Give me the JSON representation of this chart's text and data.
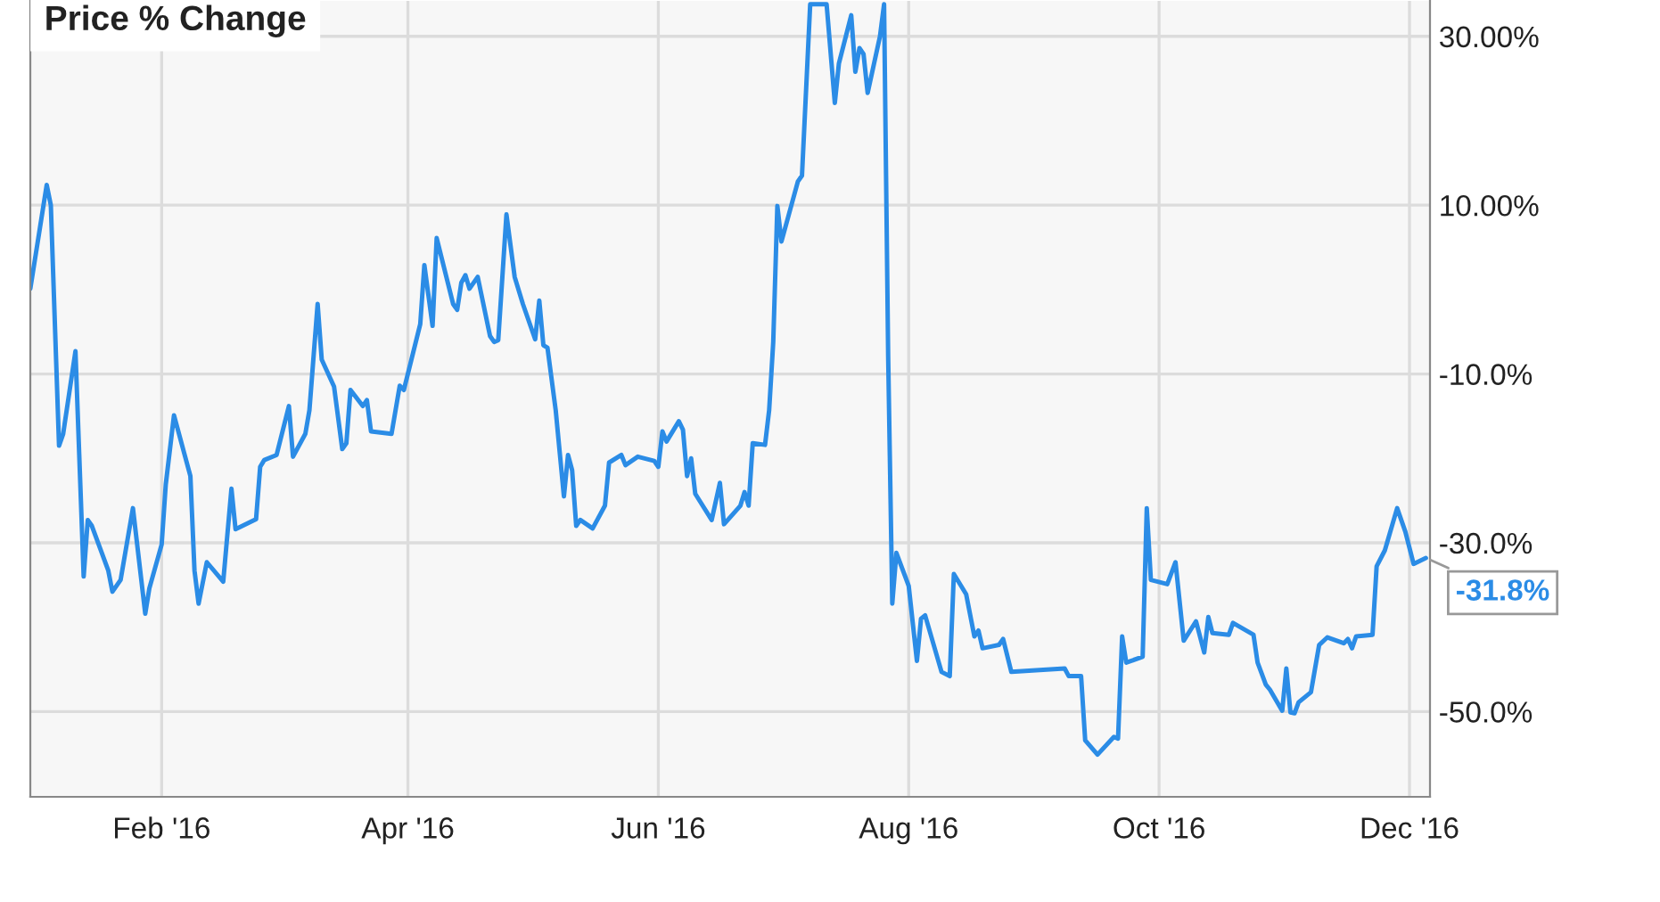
{
  "chart_data": {
    "type": "line",
    "title": "Price % Change",
    "x": [
      "2015-12-31",
      "2016-01-04",
      "2016-01-05",
      "2016-01-07",
      "2016-01-08",
      "2016-01-11",
      "2016-01-13",
      "2016-01-14",
      "2016-01-15",
      "2016-01-19",
      "2016-01-20",
      "2016-01-22",
      "2016-01-25",
      "2016-01-28",
      "2016-01-29",
      "2016-02-01",
      "2016-02-02",
      "2016-02-04",
      "2016-02-08",
      "2016-02-09",
      "2016-02-10",
      "2016-02-12",
      "2016-02-16",
      "2016-02-18",
      "2016-02-19",
      "2016-02-24",
      "2016-02-25",
      "2016-02-26",
      "2016-02-29",
      "2016-03-03",
      "2016-03-04",
      "2016-03-07",
      "2016-03-08",
      "2016-03-10",
      "2016-03-11",
      "2016-03-14",
      "2016-03-16",
      "2016-03-17",
      "2016-03-18",
      "2016-03-21",
      "2016-03-22",
      "2016-03-23",
      "2016-03-28",
      "2016-03-30",
      "2016-03-31",
      "2016-04-04",
      "2016-04-05",
      "2016-04-07",
      "2016-04-08",
      "2016-04-12",
      "2016-04-13",
      "2016-04-14",
      "2016-04-15",
      "2016-04-16",
      "2016-04-18",
      "2016-04-21",
      "2016-04-22",
      "2016-04-23",
      "2016-04-25",
      "2016-04-27",
      "2016-04-29",
      "2016-05-02",
      "2016-05-03",
      "2016-05-04",
      "2016-05-05",
      "2016-05-07",
      "2016-05-09",
      "2016-05-10",
      "2016-05-11",
      "2016-05-12",
      "2016-05-13",
      "2016-05-16",
      "2016-05-19",
      "2016-05-20",
      "2016-05-23",
      "2016-05-24",
      "2016-05-27",
      "2016-05-31",
      "2016-06-01",
      "2016-06-02",
      "2016-06-03",
      "2016-06-06",
      "2016-06-07",
      "2016-06-08",
      "2016-06-09",
      "2016-06-10",
      "2016-06-14",
      "2016-06-16",
      "2016-06-17",
      "2016-06-21",
      "2016-06-22",
      "2016-06-23",
      "2016-06-24",
      "2016-06-27",
      "2016-06-28",
      "2016-06-29",
      "2016-06-30",
      "2016-07-01",
      "2016-07-05",
      "2016-07-06",
      "2016-07-08",
      "2016-07-12",
      "2016-07-14",
      "2016-07-15",
      "2016-07-18",
      "2016-07-19",
      "2016-07-20",
      "2016-07-21",
      "2016-07-22",
      "2016-07-25",
      "2016-07-26",
      "2016-07-27",
      "2016-07-28",
      "2016-07-29",
      "2016-08-01",
      "2016-08-03",
      "2016-08-04",
      "2016-08-05",
      "2016-08-09",
      "2016-08-11",
      "2016-08-12",
      "2016-08-15",
      "2016-08-17",
      "2016-08-18",
      "2016-08-19",
      "2016-08-23",
      "2016-08-24",
      "2016-08-26",
      "2016-09-01",
      "2016-09-08",
      "2016-09-09",
      "2016-09-12",
      "2016-09-13",
      "2016-09-16",
      "2016-09-20",
      "2016-09-21",
      "2016-09-22",
      "2016-09-23",
      "2016-09-27",
      "2016-09-28",
      "2016-09-29",
      "2016-10-03",
      "2016-10-05",
      "2016-10-07",
      "2016-10-10",
      "2016-10-12",
      "2016-10-13",
      "2016-10-14",
      "2016-10-18",
      "2016-10-19",
      "2016-10-24",
      "2016-10-25",
      "2016-10-27",
      "2016-10-28",
      "2016-10-31",
      "2016-11-01",
      "2016-11-02",
      "2016-11-03",
      "2016-11-04",
      "2016-11-07",
      "2016-11-09",
      "2016-11-11",
      "2016-11-15",
      "2016-11-16",
      "2016-11-17",
      "2016-11-18",
      "2016-11-22",
      "2016-11-23",
      "2016-11-25",
      "2016-11-28",
      "2016-11-30",
      "2016-12-02",
      "2016-12-05"
    ],
    "series": [
      {
        "color": "#2b8ce6",
        "values": [
          0.1,
          12.4,
          10,
          -18.5,
          -17.1,
          -7.3,
          -34,
          -27.3,
          -28,
          -33.3,
          -35.8,
          -34.4,
          -25.9,
          -38.4,
          -35.4,
          -30.2,
          -23.1,
          -14.9,
          -22.1,
          -33.3,
          -37.2,
          -32.3,
          -34.6,
          -23.6,
          -28.4,
          -27.2,
          -21,
          -20.2,
          -19.6,
          -13.8,
          -19.8,
          -17.1,
          -14.3,
          -1.7,
          -8.3,
          -11.5,
          -18.9,
          -18.2,
          -11.9,
          -13.8,
          -13.1,
          -16.8,
          -17.1,
          -11.4,
          -11.9,
          -4.1,
          2.9,
          -4.3,
          6.1,
          -1.7,
          -2.4,
          0.8,
          1.7,
          0.1,
          1.5,
          -5.5,
          -6.2,
          -6,
          8.9,
          1.5,
          -1.7,
          -5.9,
          -1.3,
          -6.6,
          -6.9,
          -14.3,
          -24.5,
          -19.6,
          -21.4,
          -28,
          -27.3,
          -28.3,
          -25.6,
          -20.5,
          -19.6,
          -20.8,
          -19.8,
          -20.3,
          -21,
          -16.8,
          -18,
          -15.6,
          -16.6,
          -22.1,
          -20,
          -24.2,
          -27.3,
          -22.9,
          -27.8,
          -25.6,
          -24,
          -25.6,
          -18.2,
          -18.4,
          -14.3,
          -6.2,
          9.9,
          5.7,
          12.8,
          13.5,
          33.8,
          33.8,
          22.1,
          26.8,
          32.5,
          25.8,
          28.6,
          27.9,
          23.3,
          30,
          33.8,
          -8,
          -37.2,
          -31.2,
          -35.1,
          -44,
          -39,
          -38.6,
          -45.3,
          -45.8,
          -33.7,
          -36.1,
          -41.1,
          -40.4,
          -42.5,
          -42.1,
          -41.4,
          -45.3,
          -45.1,
          -44.9,
          -45.8,
          -45.8,
          -53.4,
          -55.1,
          -53,
          -53.2,
          -41.1,
          -44.2,
          -43.5,
          -25.9,
          -34.4,
          -34.9,
          -32.3,
          -41.6,
          -39.3,
          -43,
          -38.8,
          -40.7,
          -40.9,
          -39.5,
          -40.9,
          -44.2,
          -46.8,
          -47.4,
          -49.9,
          -44.9,
          -50.1,
          -50.2,
          -48.9,
          -47.7,
          -42.1,
          -41.2,
          -41.9,
          -41.4,
          -42.5,
          -41.1,
          -40.9,
          -32.8,
          -30.9,
          -25.9,
          -28.7,
          -32.5,
          -31.8
        ]
      }
    ],
    "xlim": [
      "2015-12-31",
      "2016-12-06"
    ],
    "xticks": [
      {
        "value": "2016-02-01",
        "label": "Feb '16"
      },
      {
        "value": "2016-04-01",
        "label": "Apr '16"
      },
      {
        "value": "2016-06-01",
        "label": "Jun '16"
      },
      {
        "value": "2016-08-01",
        "label": "Aug '16"
      },
      {
        "value": "2016-10-01",
        "label": "Oct '16"
      },
      {
        "value": "2016-12-01",
        "label": "Dec '16"
      }
    ],
    "ylim": [
      -60.1,
      34.2
    ],
    "yticks": [
      {
        "value": 30,
        "label": "30.00%"
      },
      {
        "value": 10,
        "label": "10.00%"
      },
      {
        "value": -10,
        "label": "-10.0%"
      },
      {
        "value": -30,
        "label": "-30.0%"
      },
      {
        "value": -50,
        "label": "-50.0%"
      }
    ],
    "annotations": [
      {
        "text": "-31.8%",
        "x": "2016-12-05",
        "y": -31.8
      }
    ],
    "grid": true,
    "marker": "none",
    "line_style": "solid"
  }
}
